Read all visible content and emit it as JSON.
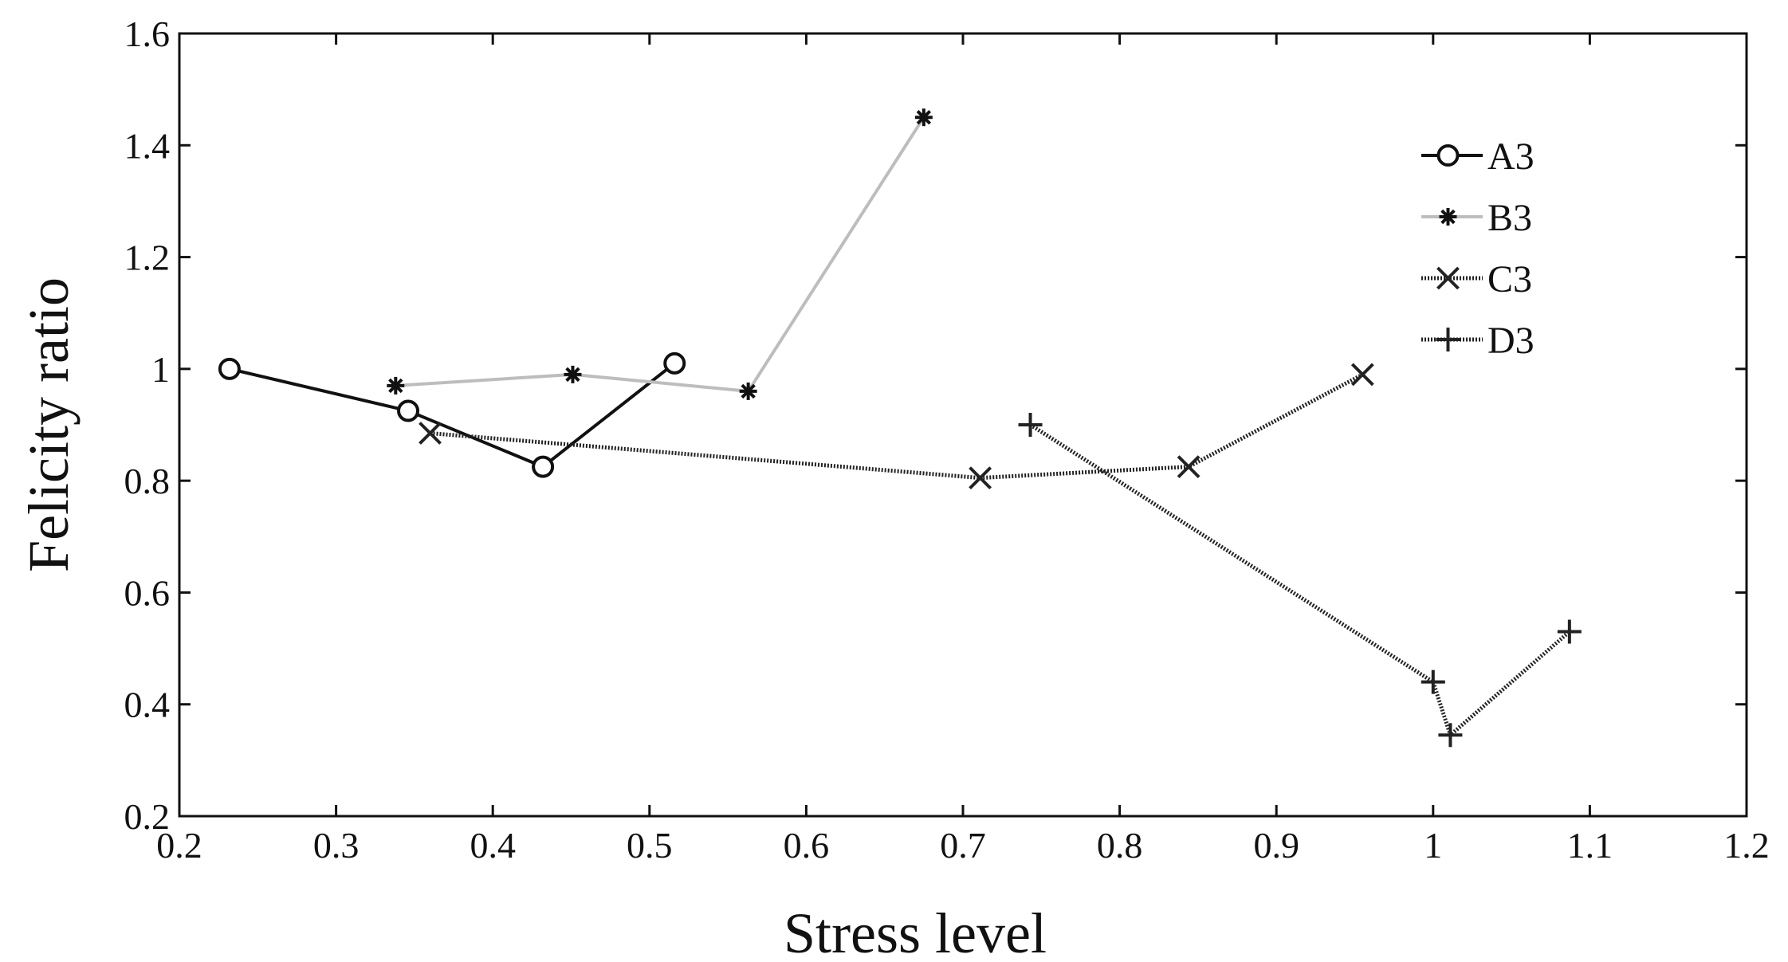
{
  "chart_data": {
    "type": "line",
    "title": "",
    "xlabel": "Stress level",
    "ylabel": "Felicity ratio",
    "xlim": [
      0.2,
      1.2
    ],
    "ylim": [
      0.2,
      1.6
    ],
    "xticks": [
      0.2,
      0.3,
      0.4,
      0.5,
      0.6,
      0.7,
      0.8,
      0.9,
      1,
      1.1,
      1.2
    ],
    "xtick_labels": [
      "0.2",
      "0.3",
      "0.4",
      "0.5",
      "0.6",
      "0.7",
      "0.8",
      "0.9",
      "1",
      "1.1",
      "1.2"
    ],
    "yticks": [
      0.2,
      0.4,
      0.6,
      0.8,
      1,
      1.2,
      1.4,
      1.6
    ],
    "ytick_labels": [
      "0.2",
      "0.4",
      "0.6",
      "0.8",
      "1",
      "1.2",
      "1.4",
      "1.6"
    ],
    "grid": false,
    "legend_position": "top-right",
    "series": [
      {
        "name": "A3",
        "marker": "circle",
        "color": "#111111",
        "line_style": "solid",
        "x": [
          0.232,
          0.346,
          0.432,
          0.516
        ],
        "y": [
          1.0,
          0.925,
          0.825,
          1.01
        ]
      },
      {
        "name": "B3",
        "marker": "asterisk",
        "color": "#bdbdbd",
        "marker_color": "#111111",
        "line_style": "solid",
        "x": [
          0.338,
          0.451,
          0.563,
          0.675
        ],
        "y": [
          0.97,
          0.99,
          0.96,
          1.45
        ]
      },
      {
        "name": "C3",
        "marker": "x",
        "color": "#222222",
        "line_style": "dotted",
        "x": [
          0.36,
          0.711,
          0.844,
          0.955
        ],
        "y": [
          0.885,
          0.805,
          0.825,
          0.99
        ]
      },
      {
        "name": "D3",
        "marker": "plus",
        "color": "#222222",
        "line_style": "dotted",
        "x": [
          0.743,
          1.0,
          1.011,
          1.087
        ],
        "y": [
          0.9,
          0.44,
          0.345,
          0.53
        ]
      }
    ]
  }
}
